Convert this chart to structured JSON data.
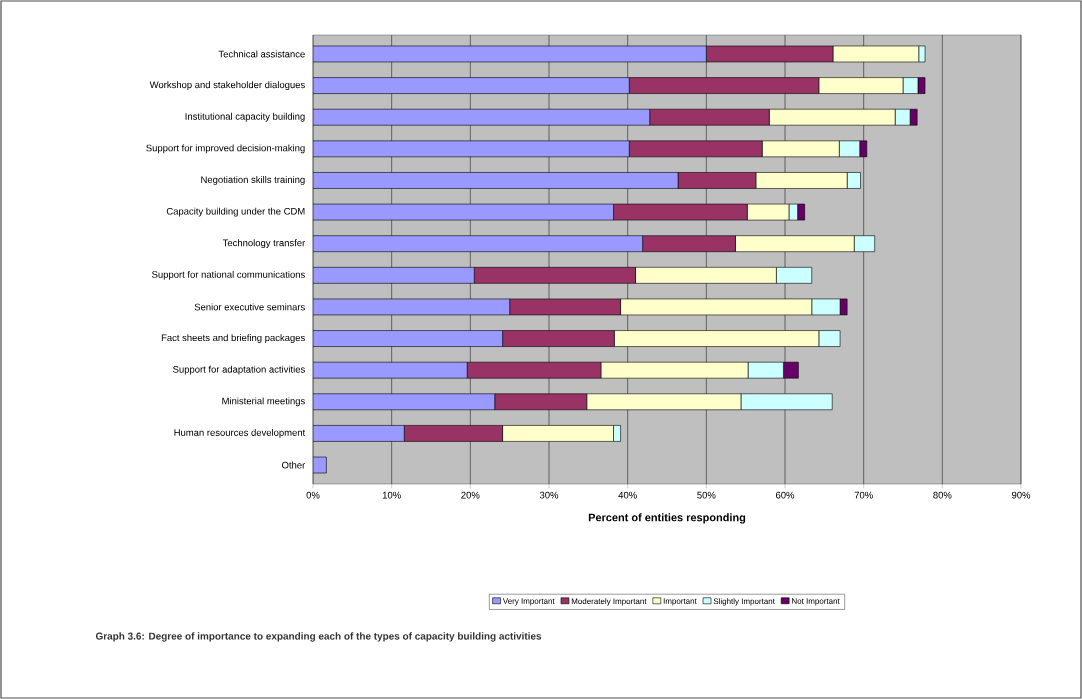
{
  "chart_data": {
    "type": "bar",
    "orientation": "horizontal",
    "stacked": true,
    "categories": [
      "Technical assistance",
      "Workshop and stakeholder dialogues",
      "Institutional capacity building",
      "Support for improved decision-making",
      "Negotiation skills training",
      "Capacity building under the CDM",
      "Technology transfer",
      "Support for national communications",
      "Senior executive seminars",
      "Fact sheets and briefing packages",
      "Support for adaptation activities",
      "Ministerial meetings",
      "Human resources development",
      "Other"
    ],
    "series": [
      {
        "name": "Very Important",
        "color": "#9999ff",
        "values": [
          50,
          40.2,
          42.8,
          40.2,
          46.4,
          38.2,
          41.9,
          20.5,
          25,
          24.1,
          19.6,
          23.1,
          11.6,
          1.7
        ]
      },
      {
        "name": "Moderately Important",
        "color": "#993366",
        "values": [
          16.1,
          24.1,
          15.2,
          16.9,
          9.9,
          17,
          11.8,
          20.5,
          14.1,
          14.2,
          17,
          11.7,
          12.5,
          0
        ]
      },
      {
        "name": "Important",
        "color": "#ffffcc",
        "values": [
          10.9,
          10.7,
          16,
          9.8,
          11.6,
          5.3,
          15.1,
          17.9,
          24.3,
          26,
          18.7,
          19.6,
          14.1,
          0
        ]
      },
      {
        "name": "Slightly Important",
        "color": "#ccffff",
        "values": [
          0.8,
          1.9,
          1.9,
          2.6,
          1.7,
          1.1,
          2.6,
          4.5,
          3.6,
          2.7,
          4.5,
          11.6,
          0.9,
          0
        ]
      },
      {
        "name": "Not Important",
        "color": "#660066",
        "values": [
          0,
          0.9,
          0.9,
          0.9,
          0,
          0.9,
          0,
          0,
          0.9,
          0,
          1.9,
          0,
          0,
          0
        ]
      }
    ],
    "xlim": [
      0,
      90
    ],
    "xticks": [
      {
        "value": 0,
        "label": "0%"
      },
      {
        "value": 10,
        "label": "10%"
      },
      {
        "value": 20,
        "label": "20%"
      },
      {
        "value": 30,
        "label": "30%"
      },
      {
        "value": 40,
        "label": "40%"
      },
      {
        "value": 50,
        "label": "50%"
      },
      {
        "value": 60,
        "label": "60%"
      },
      {
        "value": 70,
        "label": "70%"
      },
      {
        "value": 80,
        "label": "80%"
      },
      {
        "value": 90,
        "label": "90%"
      }
    ],
    "xlabel": "Percent of entities responding",
    "grid": "x",
    "legend": "bottom",
    "annotations": [
      "Graph 3.6: Degree of importance to expanding each of the types of capacity building activities"
    ]
  }
}
